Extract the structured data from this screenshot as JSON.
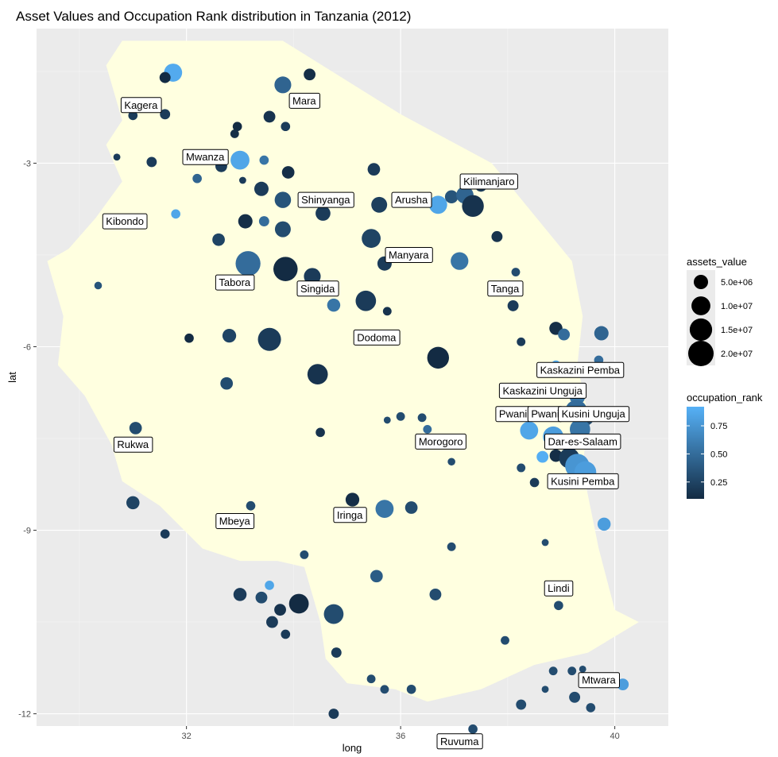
{
  "chart_data": {
    "type": "scatter",
    "title": "Asset Values and Occupation Rank distribution in Tanzania (2012)",
    "xlabel": "long",
    "ylabel": "lat",
    "xlim": [
      29.2,
      41.0
    ],
    "ylim": [
      -12.2,
      -0.8
    ],
    "x_ticks": [
      32,
      36,
      40
    ],
    "x_tick_labels": [
      "32",
      "36",
      "40"
    ],
    "y_ticks": [
      -3,
      -6,
      -9,
      -12
    ],
    "y_tick_labels": [
      "-3",
      "-6",
      "-9",
      "-12"
    ],
    "grid": true,
    "background_color": "#ebebeb",
    "map_fill": "#ffffe0",
    "color_low": "#132b43",
    "color_high": "#56b1f7",
    "legend_position": "right",
    "map_outline": [
      [
        30.9,
        -1.0
      ],
      [
        33.8,
        -1.0
      ],
      [
        36.0,
        -2.2
      ],
      [
        37.7,
        -3.0
      ],
      [
        39.2,
        -4.6
      ],
      [
        39.4,
        -5.5
      ],
      [
        39.3,
        -6.3
      ],
      [
        39.5,
        -7.1
      ],
      [
        39.4,
        -8.0
      ],
      [
        39.7,
        -9.3
      ],
      [
        40.0,
        -10.3
      ],
      [
        40.45,
        -10.5
      ],
      [
        39.5,
        -11.0
      ],
      [
        38.5,
        -11.2
      ],
      [
        37.5,
        -11.6
      ],
      [
        36.5,
        -11.8
      ],
      [
        35.9,
        -11.6
      ],
      [
        35.0,
        -11.5
      ],
      [
        34.6,
        -11.1
      ],
      [
        34.5,
        -10.5
      ],
      [
        34.2,
        -9.6
      ],
      [
        33.7,
        -9.5
      ],
      [
        33.0,
        -9.5
      ],
      [
        32.3,
        -9.3
      ],
      [
        31.5,
        -8.6
      ],
      [
        30.8,
        -8.2
      ],
      [
        30.6,
        -7.6
      ],
      [
        30.1,
        -6.8
      ],
      [
        29.6,
        -6.3
      ],
      [
        29.7,
        -5.5
      ],
      [
        29.4,
        -4.6
      ],
      [
        29.8,
        -4.4
      ],
      [
        30.3,
        -3.9
      ],
      [
        30.8,
        -3.3
      ],
      [
        30.5,
        -2.7
      ],
      [
        30.8,
        -2.3
      ],
      [
        30.5,
        -1.4
      ],
      [
        30.8,
        -1.0
      ]
    ],
    "points": [
      {
        "x": 31.75,
        "y": -1.52,
        "size": 9000000,
        "rank": 0.88
      },
      {
        "x": 31.6,
        "y": -1.6,
        "size": 2500000,
        "rank": 0.1
      },
      {
        "x": 33.8,
        "y": -1.72,
        "size": 7500000,
        "rank": 0.45
      },
      {
        "x": 34.3,
        "y": -1.55,
        "size": 3000000,
        "rank": 0.12
      },
      {
        "x": 31.0,
        "y": -2.22,
        "size": 1500000,
        "rank": 0.2
      },
      {
        "x": 31.6,
        "y": -2.2,
        "size": 2000000,
        "rank": 0.2
      },
      {
        "x": 33.55,
        "y": -2.24,
        "size": 3000000,
        "rank": 0.15
      },
      {
        "x": 33.85,
        "y": -2.4,
        "size": 1500000,
        "rank": 0.2
      },
      {
        "x": 32.95,
        "y": -2.4,
        "size": 1500000,
        "rank": 0.1
      },
      {
        "x": 32.9,
        "y": -2.52,
        "size": 1200000,
        "rank": 0.12
      },
      {
        "x": 33.0,
        "y": -2.95,
        "size": 10000000,
        "rank": 0.85
      },
      {
        "x": 32.65,
        "y": -3.05,
        "size": 3000000,
        "rank": 0.2
      },
      {
        "x": 31.35,
        "y": -2.98,
        "size": 2000000,
        "rank": 0.2
      },
      {
        "x": 30.7,
        "y": -2.9,
        "size": 600000,
        "rank": 0.2
      },
      {
        "x": 33.45,
        "y": -2.95,
        "size": 1500000,
        "rank": 0.55
      },
      {
        "x": 32.2,
        "y": -3.25,
        "size": 1500000,
        "rank": 0.45
      },
      {
        "x": 33.05,
        "y": -3.28,
        "size": 600000,
        "rank": 0.2
      },
      {
        "x": 33.9,
        "y": -3.15,
        "size": 3500000,
        "rank": 0.12
      },
      {
        "x": 35.5,
        "y": -3.1,
        "size": 3500000,
        "rank": 0.2
      },
      {
        "x": 33.4,
        "y": -3.42,
        "size": 5000000,
        "rank": 0.2
      },
      {
        "x": 33.8,
        "y": -3.6,
        "size": 7000000,
        "rank": 0.35
      },
      {
        "x": 35.6,
        "y": -3.68,
        "size": 6500000,
        "rank": 0.22
      },
      {
        "x": 36.45,
        "y": -3.63,
        "size": 2000000,
        "rank": 0.25
      },
      {
        "x": 36.7,
        "y": -3.68,
        "size": 9000000,
        "rank": 0.85
      },
      {
        "x": 36.95,
        "y": -3.55,
        "size": 4000000,
        "rank": 0.35
      },
      {
        "x": 37.2,
        "y": -3.52,
        "size": 8000000,
        "rank": 0.45
      },
      {
        "x": 37.5,
        "y": -3.37,
        "size": 3000000,
        "rank": 0.2
      },
      {
        "x": 37.35,
        "y": -3.7,
        "size": 14000000,
        "rank": 0.15
      },
      {
        "x": 30.7,
        "y": -3.95,
        "size": 1500000,
        "rank": 0.3
      },
      {
        "x": 31.8,
        "y": -3.83,
        "size": 1500000,
        "rank": 0.85
      },
      {
        "x": 33.1,
        "y": -3.95,
        "size": 5000000,
        "rank": 0.12
      },
      {
        "x": 33.45,
        "y": -3.95,
        "size": 2000000,
        "rank": 0.5
      },
      {
        "x": 33.8,
        "y": -4.08,
        "size": 6500000,
        "rank": 0.3
      },
      {
        "x": 34.55,
        "y": -3.82,
        "size": 5500000,
        "rank": 0.2
      },
      {
        "x": 35.45,
        "y": -4.23,
        "size": 10000000,
        "rank": 0.25
      },
      {
        "x": 32.6,
        "y": -4.25,
        "size": 3500000,
        "rank": 0.25
      },
      {
        "x": 33.15,
        "y": -4.64,
        "size": 19000000,
        "rank": 0.5
      },
      {
        "x": 33.85,
        "y": -4.73,
        "size": 18000000,
        "rank": 0.1
      },
      {
        "x": 34.35,
        "y": -4.85,
        "size": 7500000,
        "rank": 0.2
      },
      {
        "x": 35.7,
        "y": -4.64,
        "size": 5000000,
        "rank": 0.2
      },
      {
        "x": 37.1,
        "y": -4.6,
        "size": 8500000,
        "rank": 0.55
      },
      {
        "x": 37.8,
        "y": -4.2,
        "size": 2500000,
        "rank": 0.15
      },
      {
        "x": 38.15,
        "y": -4.78,
        "size": 1200000,
        "rank": 0.3
      },
      {
        "x": 30.35,
        "y": -5.0,
        "size": 800000,
        "rank": 0.35
      },
      {
        "x": 35.35,
        "y": -5.25,
        "size": 12000000,
        "rank": 0.2
      },
      {
        "x": 34.75,
        "y": -5.32,
        "size": 4000000,
        "rank": 0.55
      },
      {
        "x": 35.75,
        "y": -5.42,
        "size": 1200000,
        "rank": 0.15
      },
      {
        "x": 38.1,
        "y": -5.33,
        "size": 2500000,
        "rank": 0.2
      },
      {
        "x": 38.9,
        "y": -5.7,
        "size": 4000000,
        "rank": 0.12
      },
      {
        "x": 39.05,
        "y": -5.8,
        "size": 3000000,
        "rank": 0.5
      },
      {
        "x": 39.75,
        "y": -5.78,
        "size": 5000000,
        "rank": 0.45
      },
      {
        "x": 32.05,
        "y": -5.86,
        "size": 1500000,
        "rank": 0.1
      },
      {
        "x": 32.8,
        "y": -5.82,
        "size": 4500000,
        "rank": 0.25
      },
      {
        "x": 33.55,
        "y": -5.88,
        "size": 16000000,
        "rank": 0.2
      },
      {
        "x": 38.25,
        "y": -5.92,
        "size": 1200000,
        "rank": 0.2
      },
      {
        "x": 34.45,
        "y": -6.45,
        "size": 12000000,
        "rank": 0.15
      },
      {
        "x": 36.7,
        "y": -6.18,
        "size": 14000000,
        "rank": 0.1
      },
      {
        "x": 38.9,
        "y": -6.3,
        "size": 1500000,
        "rank": 0.9
      },
      {
        "x": 39.7,
        "y": -6.22,
        "size": 1500000,
        "rank": 0.5
      },
      {
        "x": 32.75,
        "y": -6.6,
        "size": 3500000,
        "rank": 0.3
      },
      {
        "x": 39.3,
        "y": -6.82,
        "size": 6000000,
        "rank": 0.55
      },
      {
        "x": 39.28,
        "y": -7.05,
        "size": 14000000,
        "rank": 0.5
      },
      {
        "x": 39.45,
        "y": -7.15,
        "size": 8000000,
        "rank": 0.3
      },
      {
        "x": 39.35,
        "y": -7.35,
        "size": 12000000,
        "rank": 0.55
      },
      {
        "x": 38.4,
        "y": -7.37,
        "size": 9000000,
        "rank": 0.85
      },
      {
        "x": 38.85,
        "y": -7.47,
        "size": 12000000,
        "rank": 0.8
      },
      {
        "x": 36.0,
        "y": -7.14,
        "size": 1200000,
        "rank": 0.3
      },
      {
        "x": 36.4,
        "y": -7.16,
        "size": 1200000,
        "rank": 0.3
      },
      {
        "x": 35.75,
        "y": -7.2,
        "size": 600000,
        "rank": 0.3
      },
      {
        "x": 36.5,
        "y": -7.35,
        "size": 1200000,
        "rank": 0.5
      },
      {
        "x": 31.05,
        "y": -7.33,
        "size": 3500000,
        "rank": 0.3
      },
      {
        "x": 34.5,
        "y": -7.4,
        "size": 1500000,
        "rank": 0.15
      },
      {
        "x": 38.9,
        "y": -7.78,
        "size": 3500000,
        "rank": 0.12
      },
      {
        "x": 39.15,
        "y": -7.82,
        "size": 12000000,
        "rank": 0.2
      },
      {
        "x": 39.3,
        "y": -7.95,
        "size": 18000000,
        "rank": 0.75
      },
      {
        "x": 39.45,
        "y": -8.05,
        "size": 14000000,
        "rank": 0.8
      },
      {
        "x": 38.65,
        "y": -7.8,
        "size": 3000000,
        "rank": 0.9
      },
      {
        "x": 36.95,
        "y": -7.88,
        "size": 800000,
        "rank": 0.3
      },
      {
        "x": 38.25,
        "y": -7.98,
        "size": 1200000,
        "rank": 0.3
      },
      {
        "x": 38.5,
        "y": -8.22,
        "size": 1500000,
        "rank": 0.2
      },
      {
        "x": 31.0,
        "y": -8.55,
        "size": 4000000,
        "rank": 0.25
      },
      {
        "x": 35.1,
        "y": -8.5,
        "size": 4500000,
        "rank": 0.12
      },
      {
        "x": 35.7,
        "y": -8.65,
        "size": 9000000,
        "rank": 0.55
      },
      {
        "x": 36.2,
        "y": -8.63,
        "size": 3500000,
        "rank": 0.3
      },
      {
        "x": 33.2,
        "y": -8.6,
        "size": 1500000,
        "rank": 0.3
      },
      {
        "x": 31.6,
        "y": -9.06,
        "size": 1500000,
        "rank": 0.2
      },
      {
        "x": 36.95,
        "y": -9.27,
        "size": 1200000,
        "rank": 0.3
      },
      {
        "x": 38.7,
        "y": -9.2,
        "size": 600000,
        "rank": 0.3
      },
      {
        "x": 39.8,
        "y": -8.9,
        "size": 4000000,
        "rank": 0.8
      },
      {
        "x": 34.2,
        "y": -9.4,
        "size": 1200000,
        "rank": 0.3
      },
      {
        "x": 35.55,
        "y": -9.75,
        "size": 3500000,
        "rank": 0.4
      },
      {
        "x": 33.0,
        "y": -10.05,
        "size": 4000000,
        "rank": 0.2
      },
      {
        "x": 33.4,
        "y": -10.1,
        "size": 3000000,
        "rank": 0.3
      },
      {
        "x": 33.55,
        "y": -9.9,
        "size": 1500000,
        "rank": 0.85
      },
      {
        "x": 33.75,
        "y": -10.3,
        "size": 3000000,
        "rank": 0.15
      },
      {
        "x": 34.1,
        "y": -10.2,
        "size": 11000000,
        "rank": 0.1
      },
      {
        "x": 34.75,
        "y": -10.37,
        "size": 11000000,
        "rank": 0.3
      },
      {
        "x": 33.6,
        "y": -10.5,
        "size": 3000000,
        "rank": 0.2
      },
      {
        "x": 33.85,
        "y": -10.7,
        "size": 1500000,
        "rank": 0.2
      },
      {
        "x": 36.65,
        "y": -10.05,
        "size": 3000000,
        "rank": 0.3
      },
      {
        "x": 38.95,
        "y": -10.23,
        "size": 1500000,
        "rank": 0.3
      },
      {
        "x": 37.95,
        "y": -10.8,
        "size": 1200000,
        "rank": 0.3
      },
      {
        "x": 34.8,
        "y": -11.0,
        "size": 2000000,
        "rank": 0.2
      },
      {
        "x": 35.45,
        "y": -11.43,
        "size": 1200000,
        "rank": 0.3
      },
      {
        "x": 36.2,
        "y": -11.6,
        "size": 1500000,
        "rank": 0.3
      },
      {
        "x": 38.85,
        "y": -11.3,
        "size": 1200000,
        "rank": 0.3
      },
      {
        "x": 39.2,
        "y": -11.3,
        "size": 1200000,
        "rank": 0.3
      },
      {
        "x": 39.4,
        "y": -11.27,
        "size": 600000,
        "rank": 0.3
      },
      {
        "x": 38.7,
        "y": -11.6,
        "size": 600000,
        "rank": 0.3
      },
      {
        "x": 40.15,
        "y": -11.52,
        "size": 3000000,
        "rank": 0.8
      },
      {
        "x": 39.25,
        "y": -11.73,
        "size": 2500000,
        "rank": 0.3
      },
      {
        "x": 38.25,
        "y": -11.85,
        "size": 2000000,
        "rank": 0.3
      },
      {
        "x": 39.55,
        "y": -11.9,
        "size": 1500000,
        "rank": 0.3
      },
      {
        "x": 35.7,
        "y": -11.6,
        "size": 1200000,
        "rank": 0.3
      },
      {
        "x": 34.75,
        "y": -12.0,
        "size": 2000000,
        "rank": 0.2
      },
      {
        "x": 37.35,
        "y": -12.25,
        "size": 1500000,
        "rank": 0.3
      }
    ],
    "labels": [
      {
        "x": 31.15,
        "y": -2.05,
        "text": "Kagera"
      },
      {
        "x": 34.2,
        "y": -1.98,
        "text": "Mara"
      },
      {
        "x": 32.35,
        "y": -2.9,
        "text": "Mwanza"
      },
      {
        "x": 34.6,
        "y": -3.6,
        "text": "Shinyanga"
      },
      {
        "x": 36.2,
        "y": -3.6,
        "text": "Arusha"
      },
      {
        "x": 37.65,
        "y": -3.3,
        "text": "Kilimanjaro"
      },
      {
        "x": 30.85,
        "y": -3.95,
        "text": "Kibondo"
      },
      {
        "x": 36.15,
        "y": -4.5,
        "text": "Manyara"
      },
      {
        "x": 32.9,
        "y": -4.95,
        "text": "Tabora"
      },
      {
        "x": 34.45,
        "y": -5.05,
        "text": "Singida"
      },
      {
        "x": 37.95,
        "y": -5.05,
        "text": "Tanga"
      },
      {
        "x": 35.55,
        "y": -5.85,
        "text": "Dodoma"
      },
      {
        "x": 39.35,
        "y": -6.38,
        "text": "Kaskazini Pemba"
      },
      {
        "x": 38.65,
        "y": -6.72,
        "text": "Kaskazini Unguja"
      },
      {
        "x": 38.1,
        "y": -7.1,
        "text": "Pwani"
      },
      {
        "x": 38.7,
        "y": -7.1,
        "text": "Pwani"
      },
      {
        "x": 39.6,
        "y": -7.1,
        "text": "Kusini Unguja"
      },
      {
        "x": 39.4,
        "y": -7.55,
        "text": "Dar-es-Salaam"
      },
      {
        "x": 31.0,
        "y": -7.6,
        "text": "Rukwa"
      },
      {
        "x": 36.75,
        "y": -7.55,
        "text": "Morogoro"
      },
      {
        "x": 39.4,
        "y": -8.2,
        "text": "Kusini Pemba"
      },
      {
        "x": 32.9,
        "y": -8.85,
        "text": "Mbeya"
      },
      {
        "x": 35.05,
        "y": -8.75,
        "text": "Iringa"
      },
      {
        "x": 38.95,
        "y": -9.95,
        "text": "Lindi"
      },
      {
        "x": 39.7,
        "y": -11.45,
        "text": "Mtwara"
      },
      {
        "x": 37.1,
        "y": -12.45,
        "text": "Ruvuma"
      }
    ],
    "legends": {
      "size": {
        "title": "assets_value",
        "entries": [
          {
            "label": "5.0e+06",
            "value": 5000000
          },
          {
            "label": "1.0e+07",
            "value": 10000000
          },
          {
            "label": "1.5e+07",
            "value": 15000000
          },
          {
            "label": "2.0e+07",
            "value": 20000000
          }
        ]
      },
      "color": {
        "title": "occupation_rank",
        "entries": [
          {
            "label": "0.75",
            "value": 0.75
          },
          {
            "label": "0.50",
            "value": 0.5
          },
          {
            "label": "0.25",
            "value": 0.25
          }
        ],
        "min": 0.1,
        "max": 0.92
      }
    }
  }
}
